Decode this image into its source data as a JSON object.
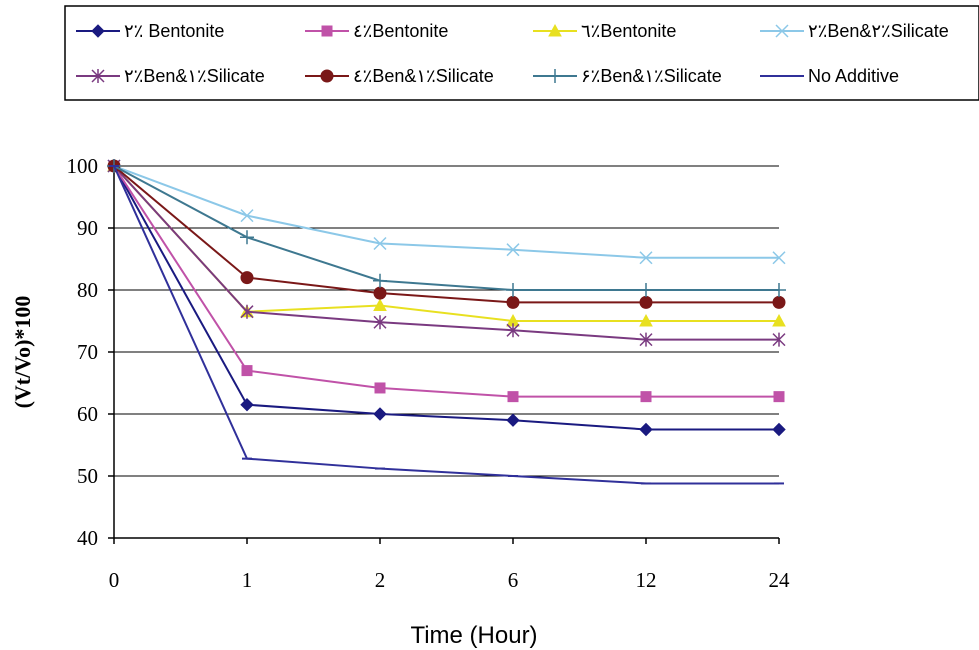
{
  "chart_data": {
    "type": "line",
    "title": "",
    "xlabel": "Time (Hour)",
    "ylabel": "(Vt/Vo)*100",
    "categories": [
      "0",
      "1",
      "2",
      "6",
      "12",
      "24"
    ],
    "ylim": [
      40,
      100
    ],
    "yticks": [
      "40",
      "50",
      "60",
      "70",
      "80",
      "90",
      "100"
    ],
    "grid": "horizontal",
    "legend_position": "top",
    "series": [
      {
        "name": "٢٪ Bentonite",
        "values": [
          100,
          61.5,
          60,
          59,
          57.5,
          57.5
        ],
        "color": "#1a1a80",
        "marker": "diamond"
      },
      {
        "name": "٤٪Bentonite",
        "values": [
          100,
          67,
          64.2,
          62.8,
          62.8,
          62.8
        ],
        "color": "#c052a8",
        "marker": "square"
      },
      {
        "name": "٦٪Bentonite",
        "values": [
          100,
          76.5,
          77.5,
          75,
          75,
          75
        ],
        "color": "#e8e020",
        "marker": "triangle"
      },
      {
        "name": "٢٪Ben&٢٪Silicate",
        "values": [
          100,
          92,
          87.5,
          86.5,
          85.2,
          85.2
        ],
        "color": "#8cc8e8",
        "marker": "x"
      },
      {
        "name": "٢٪Ben&١٪Silicate",
        "values": [
          100,
          76.5,
          74.8,
          73.5,
          72,
          72
        ],
        "color": "#7a3a80",
        "marker": "asterisk"
      },
      {
        "name": "٤٪Ben&١٪Silicate",
        "values": [
          100,
          82,
          79.5,
          78,
          78,
          78
        ],
        "color": "#7a1818",
        "marker": "circle"
      },
      {
        "name": "۶٪Ben&١٪Silicate",
        "values": [
          100,
          88.5,
          81.5,
          80,
          80,
          80
        ],
        "color": "#3e7890",
        "marker": "plus"
      },
      {
        "name": "No Additive",
        "values": [
          100,
          52.8,
          51.2,
          50,
          48.8,
          48.8
        ],
        "color": "#30309a",
        "marker": "dash"
      }
    ]
  }
}
